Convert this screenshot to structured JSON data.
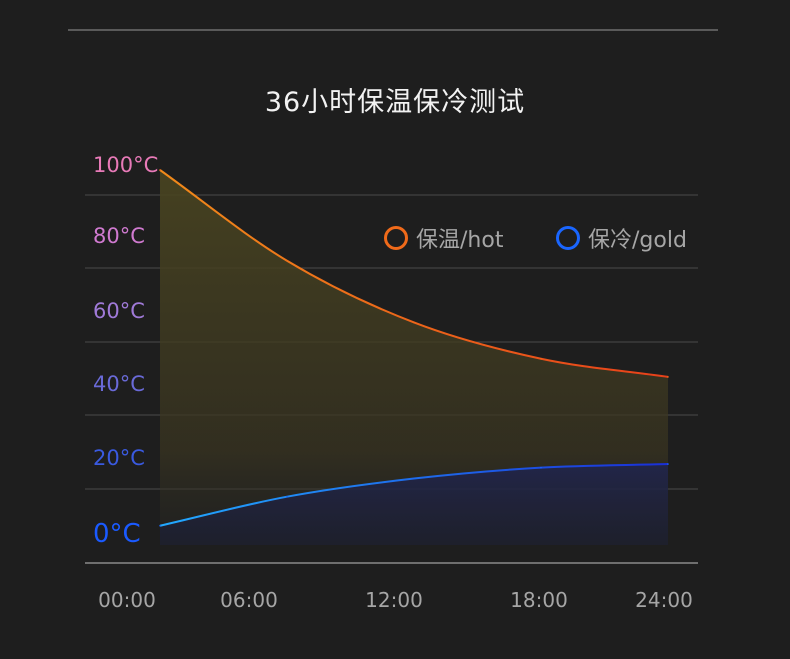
{
  "chart_data": {
    "type": "line",
    "title": "36小时保温保冷测试",
    "x": [
      "00:00",
      "06:00",
      "12:00",
      "18:00",
      "24:00"
    ],
    "x_ticks": [
      "00:00",
      "06:00",
      "12:00",
      "18:00",
      "24:00"
    ],
    "y_ticks": [
      "100°C",
      "80°C",
      "60°C",
      "40°C",
      "20°C",
      "0°C"
    ],
    "ylim": [
      0,
      100
    ],
    "grid": true,
    "legend_placement": "top-right",
    "series": [
      {
        "name": "保温/hot",
        "color": "#f06a1a",
        "x_hours": [
          0,
          6,
          12,
          18,
          24
        ],
        "values": [
          100,
          75,
          58,
          48,
          43
        ]
      },
      {
        "name": "保冷/gold",
        "color": "#1a66ff",
        "x_hours": [
          0,
          6,
          12,
          18,
          24
        ],
        "values": [
          2,
          10,
          15,
          18,
          19
        ]
      }
    ]
  }
}
